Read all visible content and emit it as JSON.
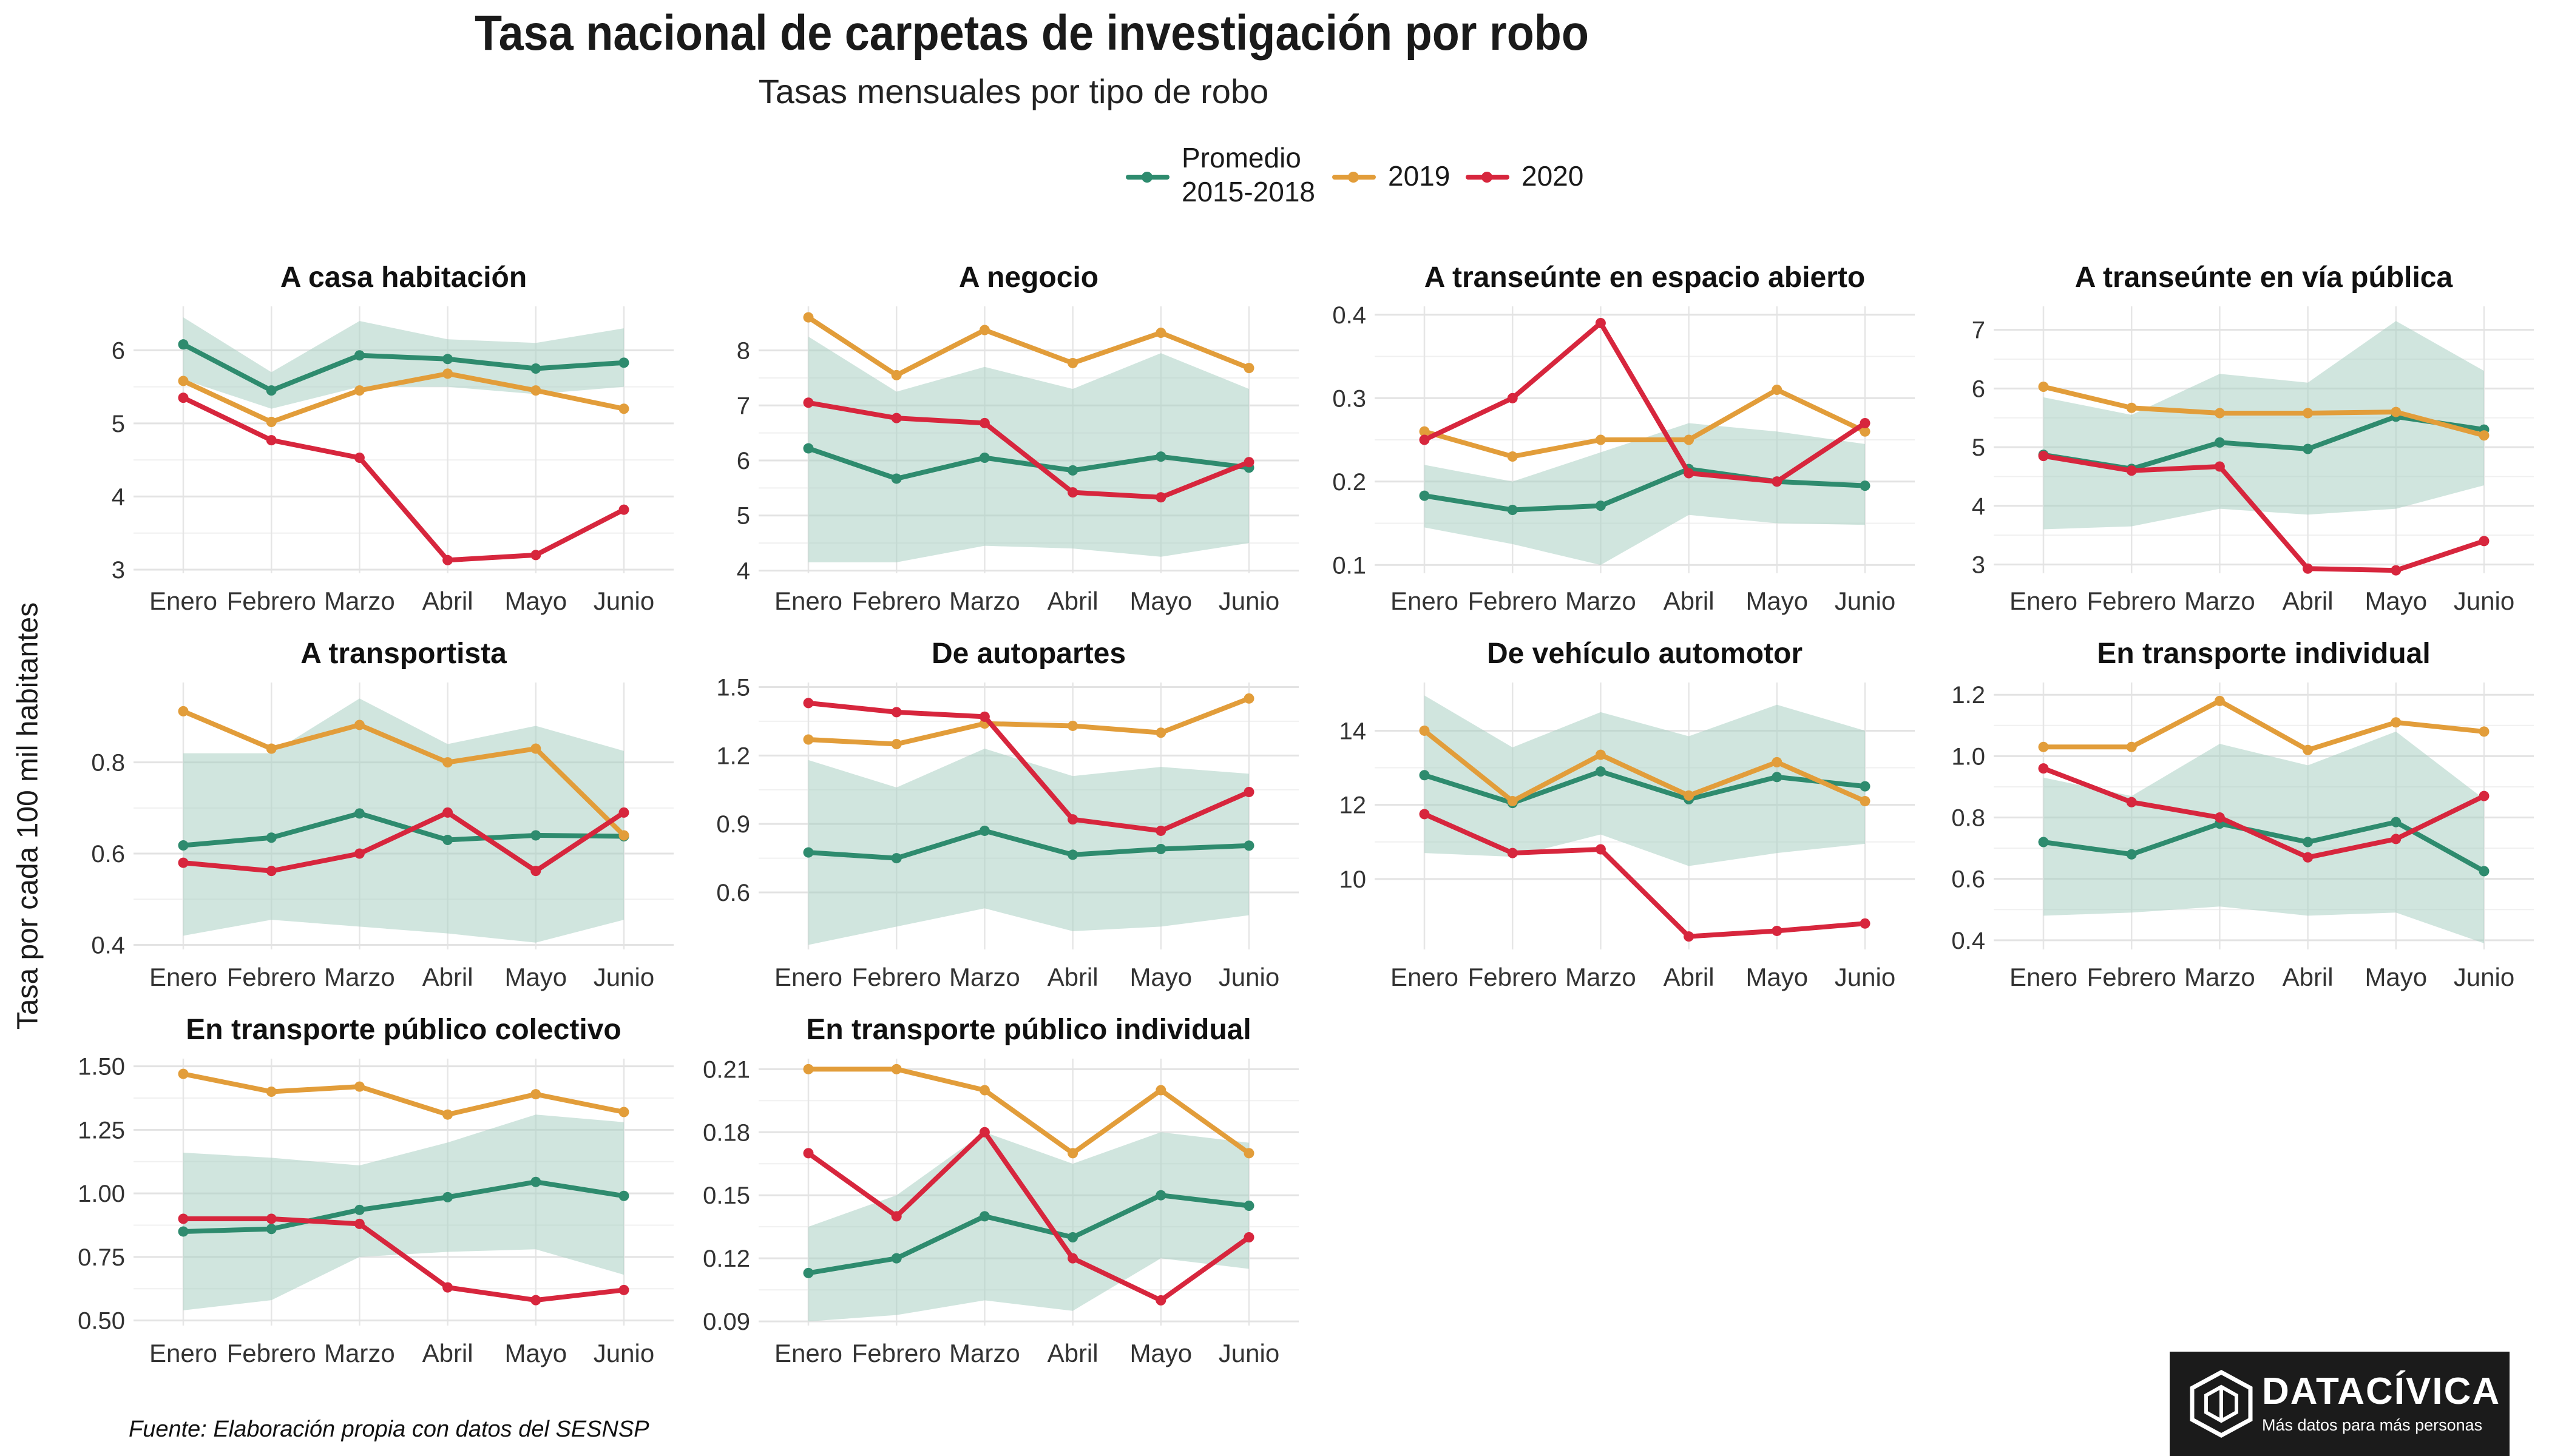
{
  "title": "Tasa nacional de carpetas de investigación por robo",
  "subtitle": "Tasas mensuales por tipo de robo",
  "y_axis_label": "Tasa por cada 100 mil habitantes",
  "source": "Fuente: Elaboración propia con datos del SESNSP",
  "logo": {
    "name": "DATACÍVICA",
    "tagline": "Más datos para más personas"
  },
  "legend": [
    {
      "label": "Promedio\n2015-2018",
      "color": "#2e8b6e"
    },
    {
      "label": "2019",
      "color": "#e29d3a"
    },
    {
      "label": "2020",
      "color": "#d7263d"
    }
  ],
  "colors": {
    "promedio": "#2e8b6e",
    "y2019": "#e29d3a",
    "y2020": "#d7263d",
    "band": "#a9d0c2"
  },
  "chart_data": [
    {
      "type": "line",
      "title": "A casa habitación",
      "categories": [
        "Enero",
        "Febrero",
        "Marzo",
        "Abril",
        "Mayo",
        "Junio"
      ],
      "ylim": [
        2.95,
        6.6
      ],
      "yticks": [
        3,
        4,
        5,
        6
      ],
      "tick_labels": [
        "3",
        "4",
        "5",
        "6"
      ],
      "band": {
        "low": [
          5.6,
          5.2,
          5.5,
          5.5,
          5.4,
          5.5
        ],
        "high": [
          6.45,
          5.7,
          6.4,
          6.15,
          6.1,
          6.3
        ]
      },
      "series": [
        {
          "name": "Promedio 2015-2018",
          "values": [
            6.08,
            5.45,
            5.93,
            5.88,
            5.75,
            5.83
          ]
        },
        {
          "name": "2019",
          "values": [
            5.58,
            5.02,
            5.45,
            5.68,
            5.45,
            5.2
          ]
        },
        {
          "name": "2020",
          "values": [
            5.35,
            4.77,
            4.53,
            3.13,
            3.2,
            3.82
          ]
        }
      ]
    },
    {
      "type": "line",
      "title": "A negocio",
      "categories": [
        "Enero",
        "Febrero",
        "Marzo",
        "Abril",
        "Mayo",
        "Junio"
      ],
      "ylim": [
        3.95,
        8.8
      ],
      "yticks": [
        4,
        5,
        6,
        7,
        8
      ],
      "tick_labels": [
        "4",
        "5",
        "6",
        "7",
        "8"
      ],
      "band": {
        "low": [
          4.15,
          4.15,
          4.45,
          4.4,
          4.25,
          4.5
        ],
        "high": [
          8.25,
          7.25,
          7.7,
          7.3,
          7.95,
          7.3
        ]
      },
      "series": [
        {
          "name": "Promedio 2015-2018",
          "values": [
            6.22,
            5.67,
            6.05,
            5.82,
            6.07,
            5.87
          ]
        },
        {
          "name": "2019",
          "values": [
            8.6,
            7.55,
            8.37,
            7.77,
            8.32,
            7.68
          ]
        },
        {
          "name": "2020",
          "values": [
            7.05,
            6.77,
            6.68,
            5.42,
            5.33,
            5.97
          ]
        }
      ]
    },
    {
      "type": "line",
      "title": "A transeúnte en espacio abierto",
      "categories": [
        "Enero",
        "Febrero",
        "Marzo",
        "Abril",
        "Mayo",
        "Junio"
      ],
      "ylim": [
        0.09,
        0.41
      ],
      "yticks": [
        0.1,
        0.2,
        0.3,
        0.4
      ],
      "tick_labels": [
        "0.1",
        "0.2",
        "0.3",
        "0.4"
      ],
      "band": {
        "low": [
          0.145,
          0.125,
          0.1,
          0.16,
          0.15,
          0.148
        ],
        "high": [
          0.22,
          0.2,
          0.235,
          0.27,
          0.26,
          0.245
        ]
      },
      "series": [
        {
          "name": "Promedio 2015-2018",
          "values": [
            0.183,
            0.166,
            0.171,
            0.215,
            0.2,
            0.195
          ]
        },
        {
          "name": "2019",
          "values": [
            0.26,
            0.23,
            0.25,
            0.25,
            0.31,
            0.26
          ]
        },
        {
          "name": "2020",
          "values": [
            0.25,
            0.3,
            0.39,
            0.21,
            0.2,
            0.27
          ]
        }
      ]
    },
    {
      "type": "line",
      "title": "A transeúnte en vía pública",
      "categories": [
        "Enero",
        "Febrero",
        "Marzo",
        "Abril",
        "Mayo",
        "Junio"
      ],
      "ylim": [
        2.85,
        7.4
      ],
      "yticks": [
        3,
        4,
        5,
        6,
        7
      ],
      "tick_labels": [
        "3",
        "4",
        "5",
        "6",
        "7"
      ],
      "band": {
        "low": [
          3.6,
          3.65,
          3.95,
          3.85,
          3.95,
          4.35
        ],
        "high": [
          5.85,
          5.55,
          6.25,
          6.1,
          7.15,
          6.3
        ]
      },
      "series": [
        {
          "name": "Promedio 2015-2018",
          "values": [
            4.87,
            4.63,
            5.08,
            4.97,
            5.52,
            5.3
          ]
        },
        {
          "name": "2019",
          "values": [
            6.03,
            5.67,
            5.58,
            5.58,
            5.6,
            5.2
          ]
        },
        {
          "name": "2020",
          "values": [
            4.85,
            4.6,
            4.67,
            2.93,
            2.9,
            3.4
          ]
        }
      ]
    },
    {
      "type": "line",
      "title": "A transportista",
      "categories": [
        "Enero",
        "Febrero",
        "Marzo",
        "Abril",
        "Mayo",
        "Junio"
      ],
      "ylim": [
        0.39,
        0.975
      ],
      "yticks": [
        0.4,
        0.6,
        0.8
      ],
      "tick_labels": [
        "0.4",
        "0.6",
        "0.8"
      ],
      "band": {
        "low": [
          0.42,
          0.455,
          0.44,
          0.425,
          0.405,
          0.455
        ],
        "high": [
          0.82,
          0.82,
          0.94,
          0.84,
          0.88,
          0.825
        ]
      },
      "series": [
        {
          "name": "Promedio 2015-2018",
          "values": [
            0.618,
            0.635,
            0.688,
            0.63,
            0.64,
            0.638
          ]
        },
        {
          "name": "2019",
          "values": [
            0.912,
            0.83,
            0.882,
            0.8,
            0.83,
            0.64
          ]
        },
        {
          "name": "2020",
          "values": [
            0.58,
            0.562,
            0.6,
            0.69,
            0.562,
            0.69
          ]
        }
      ]
    },
    {
      "type": "line",
      "title": "De autopartes",
      "categories": [
        "Enero",
        "Febrero",
        "Marzo",
        "Abril",
        "Mayo",
        "Junio"
      ],
      "ylim": [
        0.35,
        1.52
      ],
      "yticks": [
        0.6,
        0.9,
        1.2,
        1.5
      ],
      "tick_labels": [
        "0.6",
        "0.9",
        "1.2",
        "1.5"
      ],
      "band": {
        "low": [
          0.37,
          0.45,
          0.53,
          0.43,
          0.45,
          0.5
        ],
        "high": [
          1.18,
          1.06,
          1.23,
          1.11,
          1.15,
          1.12
        ]
      },
      "series": [
        {
          "name": "Promedio 2015-2018",
          "values": [
            0.775,
            0.75,
            0.87,
            0.765,
            0.79,
            0.805
          ]
        },
        {
          "name": "2019",
          "values": [
            1.27,
            1.25,
            1.34,
            1.33,
            1.3,
            1.45
          ]
        },
        {
          "name": "2020",
          "values": [
            1.43,
            1.39,
            1.37,
            0.92,
            0.87,
            1.04
          ]
        }
      ]
    },
    {
      "type": "line",
      "title": "De vehículo automotor",
      "categories": [
        "Enero",
        "Febrero",
        "Marzo",
        "Abril",
        "Mayo",
        "Junio"
      ],
      "ylim": [
        8.1,
        15.3
      ],
      "yticks": [
        10,
        12,
        14
      ],
      "tick_labels": [
        "10",
        "12",
        "14"
      ],
      "band": {
        "low": [
          10.7,
          10.6,
          11.2,
          10.35,
          10.7,
          10.95
        ],
        "high": [
          14.95,
          13.55,
          14.5,
          13.85,
          14.7,
          14.0
        ]
      },
      "series": [
        {
          "name": "Promedio 2015-2018",
          "values": [
            12.8,
            12.05,
            12.9,
            12.15,
            12.75,
            12.5
          ]
        },
        {
          "name": "2019",
          "values": [
            14.0,
            12.1,
            13.35,
            12.25,
            13.15,
            12.1
          ]
        },
        {
          "name": "2020",
          "values": [
            11.75,
            10.7,
            10.8,
            8.45,
            8.6,
            8.8
          ]
        }
      ]
    },
    {
      "type": "line",
      "title": "En transporte individual",
      "categories": [
        "Enero",
        "Febrero",
        "Marzo",
        "Abril",
        "Mayo",
        "Junio"
      ],
      "ylim": [
        0.37,
        1.24
      ],
      "yticks": [
        0.4,
        0.6,
        0.8,
        1.0,
        1.2
      ],
      "tick_labels": [
        "0.4",
        "0.6",
        "0.8",
        "1.0",
        "1.2"
      ],
      "band": {
        "low": [
          0.48,
          0.49,
          0.51,
          0.48,
          0.49,
          0.39
        ],
        "high": [
          0.93,
          0.87,
          1.04,
          0.97,
          1.08,
          0.86
        ]
      },
      "series": [
        {
          "name": "Promedio 2015-2018",
          "values": [
            0.72,
            0.68,
            0.78,
            0.72,
            0.785,
            0.625
          ]
        },
        {
          "name": "2019",
          "values": [
            1.03,
            1.03,
            1.18,
            1.02,
            1.11,
            1.08
          ]
        },
        {
          "name": "2020",
          "values": [
            0.96,
            0.85,
            0.8,
            0.67,
            0.73,
            0.87
          ]
        }
      ]
    },
    {
      "type": "line",
      "title": "En transporte público colectivo",
      "categories": [
        "Enero",
        "Febrero",
        "Marzo",
        "Abril",
        "Mayo",
        "Junio"
      ],
      "ylim": [
        0.48,
        1.53
      ],
      "yticks": [
        0.5,
        0.75,
        1.0,
        1.25,
        1.5
      ],
      "tick_labels": [
        "0.50",
        "0.75",
        "1.00",
        "1.25",
        "1.50"
      ],
      "band": {
        "low": [
          0.54,
          0.58,
          0.75,
          0.77,
          0.78,
          0.68
        ],
        "high": [
          1.16,
          1.14,
          1.11,
          1.2,
          1.31,
          1.28
        ]
      },
      "series": [
        {
          "name": "Promedio 2015-2018",
          "values": [
            0.85,
            0.86,
            0.935,
            0.985,
            1.045,
            0.99
          ]
        },
        {
          "name": "2019",
          "values": [
            1.47,
            1.4,
            1.42,
            1.31,
            1.39,
            1.32
          ]
        },
        {
          "name": "2020",
          "values": [
            0.9,
            0.9,
            0.88,
            0.63,
            0.58,
            0.62
          ]
        }
      ]
    },
    {
      "type": "line",
      "title": "En transporte público individual",
      "categories": [
        "Enero",
        "Febrero",
        "Marzo",
        "Abril",
        "Mayo",
        "Junio"
      ],
      "ylim": [
        0.088,
        0.215
      ],
      "yticks": [
        0.09,
        0.12,
        0.15,
        0.18,
        0.21
      ],
      "tick_labels": [
        "0.09",
        "0.12",
        "0.15",
        "0.18",
        "0.21"
      ],
      "band": {
        "low": [
          0.09,
          0.093,
          0.1,
          0.095,
          0.12,
          0.115
        ],
        "high": [
          0.135,
          0.15,
          0.18,
          0.165,
          0.18,
          0.175
        ]
      },
      "series": [
        {
          "name": "Promedio 2015-2018",
          "values": [
            0.113,
            0.12,
            0.14,
            0.13,
            0.15,
            0.145
          ]
        },
        {
          "name": "2019",
          "values": [
            0.21,
            0.21,
            0.2,
            0.17,
            0.2,
            0.17
          ]
        },
        {
          "name": "2020",
          "values": [
            0.17,
            0.14,
            0.18,
            0.12,
            0.1,
            0.13
          ]
        }
      ]
    }
  ]
}
